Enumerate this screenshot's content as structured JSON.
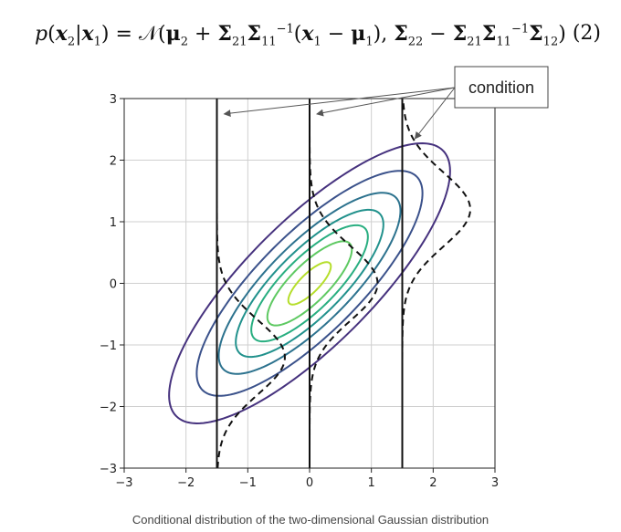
{
  "equation": {
    "lhs": "p(x₂|x₁) = ",
    "number": "(2)"
  },
  "annotation": {
    "label": "condition"
  },
  "caption": "Conditional distribution of the two-dimensional Gaussian distribution",
  "chart_data": {
    "type": "contour",
    "xlim": [
      -3,
      3
    ],
    "ylim": [
      -3,
      3
    ],
    "x_ticks": [
      "−3",
      "−2",
      "−1",
      "0",
      "1",
      "2",
      "3"
    ],
    "y_ticks": [
      "3",
      "2",
      "1",
      "0",
      "−1",
      "−2",
      "−3"
    ],
    "grid": true,
    "gaussian": {
      "mean": [
        0,
        0
      ],
      "cov": [
        [
          1,
          0.8
        ],
        [
          0.8,
          1
        ]
      ]
    },
    "contour_levels": [
      0.02,
      0.05,
      0.09,
      0.13,
      0.17,
      0.21,
      0.25
    ],
    "contour_colors": [
      "#46327e",
      "#3b528b",
      "#2c728e",
      "#21918c",
      "#28ae80",
      "#5ec962",
      "#b5de2b"
    ],
    "condition_x": [
      -1.5,
      0,
      1.5
    ],
    "density_scale": 2.6
  }
}
